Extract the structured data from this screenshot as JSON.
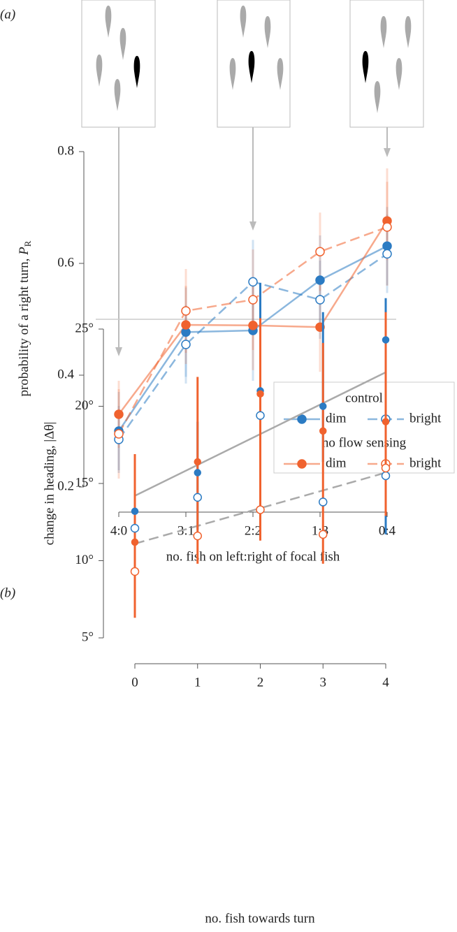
{
  "chart_data": [
    {
      "type": "line",
      "panel_label": "(a)",
      "y_label": "probability of a right turn, ",
      "y_label_symbol": "P",
      "y_label_subscript": "R",
      "x_label": "no. fish on left:right of focal fish",
      "categories": [
        "4:0",
        "3:1",
        "2:2",
        "1:3",
        "0:4"
      ],
      "ylim": [
        0.2,
        0.8
      ],
      "yticks": [
        0.2,
        0.4,
        0.6,
        0.8
      ],
      "reference_line": 0.5,
      "legend_location": "lower right",
      "series": [
        {
          "group": "control",
          "name": "dim",
          "color": "#2b7bc3",
          "marker": "filled",
          "dash": "solid",
          "values": [
            0.3,
            0.477,
            0.48,
            0.57,
            0.631
          ],
          "errors": [
            0.07,
            0.08,
            0.09,
            0.08,
            0.07
          ]
        },
        {
          "group": "control",
          "name": "bright",
          "color": "#2b7bc3",
          "marker": "open",
          "dash": "dashed",
          "values": [
            0.285,
            0.455,
            0.567,
            0.535,
            0.617
          ],
          "errors": [
            0.06,
            0.07,
            0.075,
            0.07,
            0.07
          ]
        },
        {
          "group": "no flow sensing",
          "name": "dim",
          "color": "#f0622e",
          "marker": "filled",
          "dash": "solid",
          "values": [
            0.33,
            0.49,
            0.489,
            0.486,
            0.676
          ],
          "errors": [
            0.06,
            0.07,
            0.08,
            0.08,
            0.07
          ]
        },
        {
          "group": "no flow sensing",
          "name": "bright",
          "color": "#f0622e",
          "marker": "open",
          "dash": "dashed",
          "values": [
            0.295,
            0.515,
            0.535,
            0.621,
            0.665
          ],
          "errors": [
            0.08,
            0.075,
            0.09,
            0.07,
            0.105
          ]
        }
      ]
    },
    {
      "type": "scatter",
      "panel_label": "(b)",
      "y_label": "change in heading, |Δθ|",
      "x_label": "no. fish towards turn",
      "x": [
        0,
        1,
        2,
        3,
        4
      ],
      "xlim": [
        0,
        4
      ],
      "xticks": [
        0,
        1,
        2,
        3,
        4
      ],
      "ylim": [
        5,
        25
      ],
      "yticks": [
        {
          "value": 5,
          "label": "5°"
        },
        {
          "value": 10,
          "label": "10°"
        },
        {
          "value": 15,
          "label": "15°"
        },
        {
          "value": 20,
          "label": "20°"
        },
        {
          "value": 25,
          "label": "25°"
        }
      ],
      "series": [
        {
          "group": "control",
          "name": "dim",
          "color": "#2b7bc3",
          "marker": "filled",
          "values": [
            13.2,
            15.7,
            21.0,
            20.0,
            24.3
          ],
          "error_low": [
            10.5,
            12.0,
            16.9,
            16.4,
            11.7
          ],
          "error_high": [
            16.6,
            19.0,
            28.0,
            26.1,
            27.0
          ]
        },
        {
          "group": "control",
          "name": "bright",
          "color": "#2b7bc3",
          "marker": "open",
          "values": [
            12.1,
            14.1,
            19.4,
            13.8,
            15.5
          ]
        },
        {
          "group": "no flow sensing",
          "name": "dim",
          "color": "#f0622e",
          "marker": "filled",
          "values": [
            11.2,
            16.4,
            20.8,
            18.4,
            19.0
          ],
          "error_low": [
            6.3,
            9.8,
            11.3,
            9.8,
            12.9
          ],
          "error_high": [
            16.9,
            21.9,
            25.7,
            24.1,
            26.1
          ]
        },
        {
          "group": "no flow sensing",
          "name": "bright",
          "color": "#f0622e",
          "marker": "open",
          "values": [
            9.3,
            11.6,
            13.3,
            11.7,
            16.0
          ]
        }
      ],
      "fits": [
        {
          "dash": "solid",
          "color": "#aaaaaa",
          "x": [
            0,
            4
          ],
          "values": [
            14.2,
            22.2
          ]
        },
        {
          "dash": "dashed",
          "color": "#aaaaaa",
          "x": [
            0,
            4
          ],
          "values": [
            11.1,
            15.7
          ]
        }
      ]
    }
  ]
}
